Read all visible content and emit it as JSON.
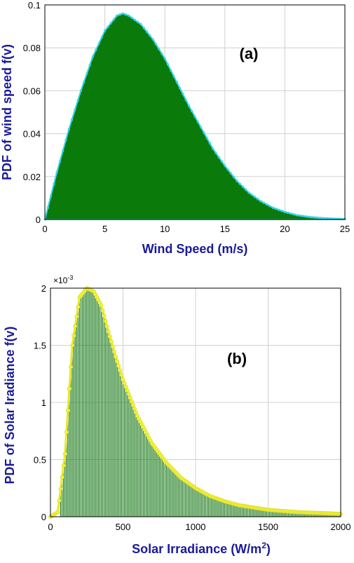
{
  "chart_data": [
    {
      "type": "area",
      "panel_label": "(a)",
      "xlabel": "Wind Speed (m/s)",
      "ylabel": "PDF of wind speed f(v)",
      "xlim": [
        0,
        25
      ],
      "ylim": [
        0,
        0.1
      ],
      "xticks": [
        "0",
        "5",
        "10",
        "15",
        "20",
        "25"
      ],
      "yticks": [
        "0",
        "0.02",
        "0.04",
        "0.06",
        "0.08",
        "0.1"
      ],
      "grid": true,
      "fill_color": "#0a7a0a",
      "marker_color": "#39d6e6",
      "x": [
        0,
        1,
        2,
        3,
        4,
        5,
        6,
        6.5,
        7,
        8,
        9,
        10,
        11,
        12,
        13,
        14,
        15,
        16,
        17,
        18,
        19,
        20,
        21,
        22,
        23,
        24,
        25
      ],
      "y": [
        0,
        0.022,
        0.042,
        0.06,
        0.076,
        0.088,
        0.095,
        0.096,
        0.095,
        0.091,
        0.084,
        0.075,
        0.064,
        0.053,
        0.043,
        0.033,
        0.025,
        0.018,
        0.0125,
        0.0085,
        0.0055,
        0.0035,
        0.002,
        0.0012,
        0.0007,
        0.0004,
        0.0002
      ]
    },
    {
      "type": "bar",
      "panel_label": "(b)",
      "xlabel": "Solar Irradiance (W/m",
      "xlabel_sup": "2",
      "xlabel_end": ")",
      "ylabel": "PDF of Solar Iradiance f(v)",
      "exponent_label": "×10",
      "exponent_sup": "-3",
      "xlim": [
        0,
        2000
      ],
      "ylim": [
        0,
        2
      ],
      "xticks": [
        "0",
        "500",
        "1000",
        "1500",
        "2000"
      ],
      "yticks": [
        "0",
        "0.5",
        "1",
        "1.5",
        "2"
      ],
      "grid": true,
      "bar_color": "#1a7a1a",
      "marker_color": "#e8e82a",
      "x": [
        0,
        50,
        100,
        150,
        200,
        250,
        300,
        350,
        400,
        450,
        500,
        600,
        700,
        800,
        900,
        1000,
        1100,
        1200,
        1300,
        1400,
        1500,
        1600,
        1700,
        1800,
        1900,
        2000
      ],
      "y": [
        0,
        0.04,
        0.55,
        1.5,
        1.92,
        2.0,
        1.97,
        1.85,
        1.62,
        1.4,
        1.2,
        0.88,
        0.64,
        0.47,
        0.34,
        0.25,
        0.18,
        0.135,
        0.1,
        0.08,
        0.06,
        0.05,
        0.04,
        0.035,
        0.03,
        0.025
      ]
    }
  ]
}
